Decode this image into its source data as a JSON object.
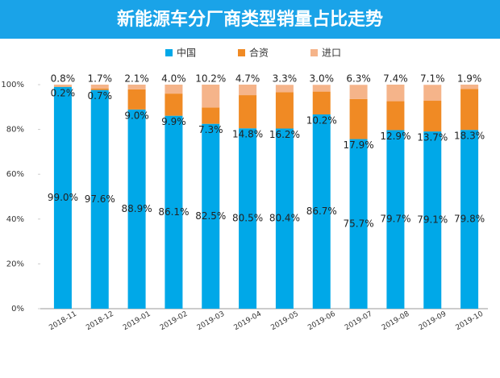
{
  "chart_data": {
    "type": "stacked_bar",
    "title": "新能源车分厂商类型销量占比走势",
    "categories": [
      "2018-11",
      "2018-12",
      "2019-01",
      "2019-02",
      "2019-03",
      "2019-04",
      "2019-05",
      "2019-06",
      "2019-07",
      "2019-08",
      "2019-09",
      "2019-10"
    ],
    "series": [
      {
        "name": "中国",
        "color": "#00a8e8",
        "values": [
          99.0,
          97.6,
          88.9,
          86.1,
          82.5,
          80.5,
          80.4,
          86.7,
          75.7,
          79.7,
          79.1,
          79.8
        ],
        "value_labels": [
          "99.0%",
          "97.6%",
          "88.9%",
          "86.1%",
          "82.5%",
          "80.5%",
          "80.4%",
          "86.7%",
          "75.7%",
          "79.7%",
          "79.1%",
          "79.8%"
        ]
      },
      {
        "name": "合资",
        "color": "#f08a24",
        "values": [
          0.2,
          0.7,
          9.0,
          9.9,
          7.3,
          14.8,
          16.2,
          10.2,
          17.9,
          12.9,
          13.7,
          18.3
        ],
        "value_labels": [
          "0.2%",
          "0.7%",
          "9.0%",
          "9.9%",
          "7.3%",
          "14.8%",
          "16.2%",
          "10.2%",
          "17.9%",
          "12.9%",
          "13.7%",
          "18.3%"
        ]
      },
      {
        "name": "进口",
        "color": "#f5b48a",
        "values": [
          0.8,
          1.7,
          2.1,
          4.0,
          10.2,
          4.7,
          3.3,
          3.0,
          6.3,
          7.4,
          7.1,
          1.9
        ],
        "value_labels": [
          "0.8%",
          "1.7%",
          "2.1%",
          "4.0%",
          "10.2%",
          "4.7%",
          "3.3%",
          "3.0%",
          "6.3%",
          "7.4%",
          "7.1%",
          "1.9%"
        ]
      }
    ],
    "ylim": [
      0,
      100
    ],
    "yticks": [
      {
        "value": 0,
        "label": "0%"
      },
      {
        "value": 20,
        "label": "20%"
      },
      {
        "value": 40,
        "label": "40%"
      },
      {
        "value": 60,
        "label": "60%"
      },
      {
        "value": 80,
        "label": "80%"
      },
      {
        "value": 100,
        "label": "100%"
      }
    ]
  }
}
